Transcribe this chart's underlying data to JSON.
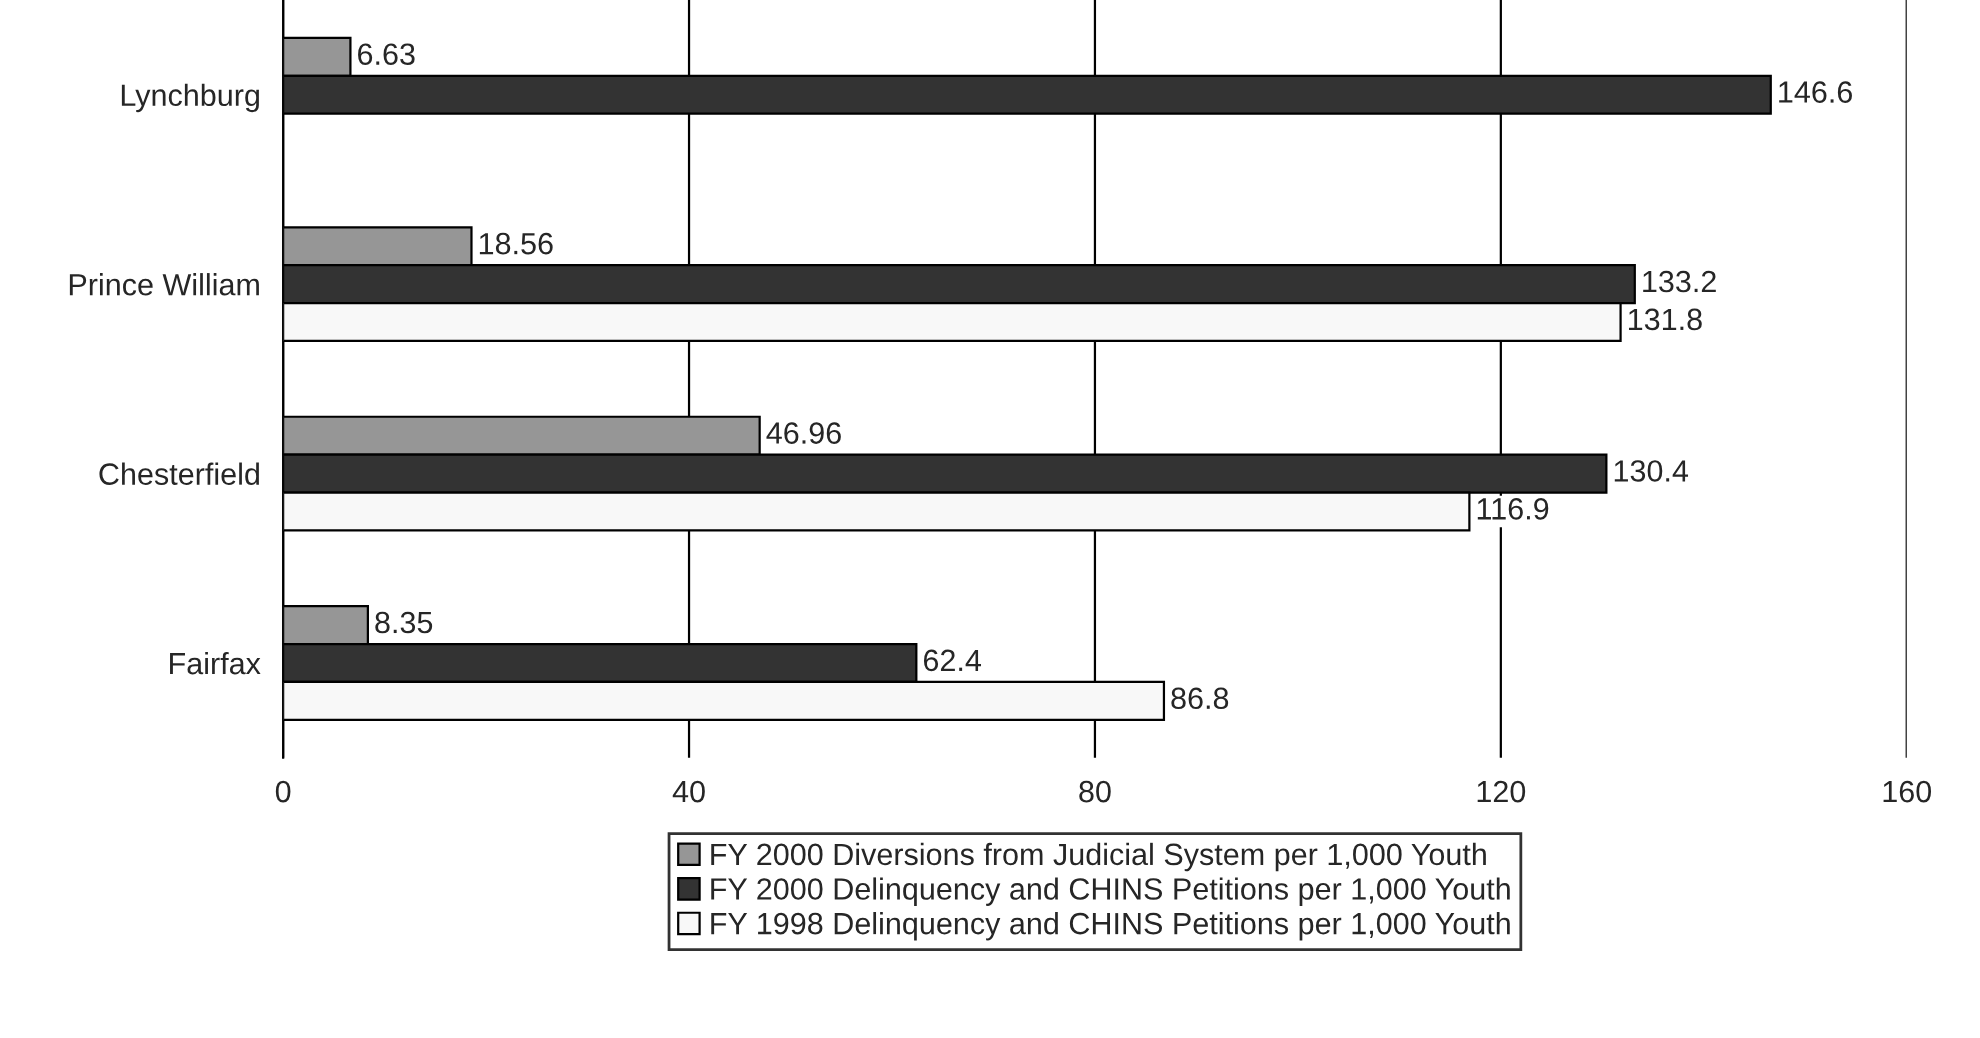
{
  "chart_data": {
    "type": "bar",
    "orientation": "horizontal",
    "categories": [
      "Lynchburg",
      "Prince William",
      "Chesterfield",
      "Fairfax"
    ],
    "series": [
      {
        "name": "FY 2000 Diversions from Judicial System per 1,000 Youth",
        "color": "#969696",
        "values": [
          6.63,
          18.56,
          46.96,
          8.35
        ]
      },
      {
        "name": "FY 2000 Delinquency and CHINS Petitions per 1,000 Youth",
        "color": "#333333",
        "values": [
          146.6,
          133.2,
          130.4,
          62.4
        ]
      },
      {
        "name": "FY 1998 Delinquency and CHINS Petitions per 1,000 Youth",
        "color": "#f8f8f8",
        "values": [
          null,
          131.8,
          116.9,
          86.8
        ]
      }
    ],
    "xlim": [
      0,
      160
    ],
    "xticks": [
      0,
      40,
      80,
      120,
      160
    ],
    "grid": "x",
    "legend": "bottom",
    "data_labels": true
  }
}
